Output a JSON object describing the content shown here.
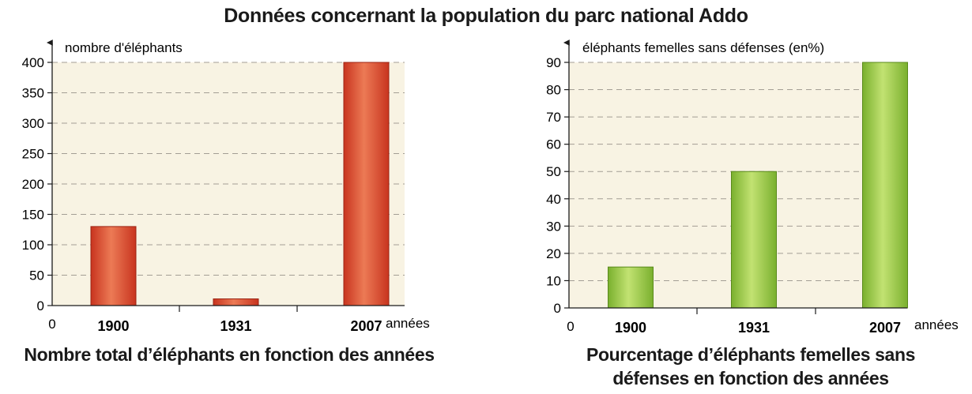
{
  "title": "Données concernant la population du parc national Addo",
  "chart_data": [
    {
      "type": "bar",
      "title": "Nombre total d’éléphants en fonction des années",
      "ylabel": "nombre d'éléphants",
      "xlabel": "années",
      "origin_label": "0",
      "categories": [
        "1900",
        "1931",
        "2007"
      ],
      "values": [
        130,
        11,
        400
      ],
      "ylim": [
        0,
        400
      ],
      "yticks": [
        0,
        50,
        100,
        150,
        200,
        250,
        300,
        350,
        400
      ],
      "grid": true,
      "bar_color": "#d9432a",
      "bar_highlight": "#ec7a55",
      "plot_bg": "#f8f3e3"
    },
    {
      "type": "bar",
      "title_lines": [
        "Pourcentage d’éléphants femelles sans",
        "défenses en fonction des années"
      ],
      "ylabel": "éléphants femelles sans défenses (en%)",
      "xlabel": "années",
      "origin_label": "0",
      "categories": [
        "1900",
        "1931",
        "2007"
      ],
      "values": [
        15,
        50,
        90
      ],
      "ylim": [
        0,
        90
      ],
      "yticks": [
        0,
        10,
        20,
        30,
        40,
        50,
        60,
        70,
        80,
        90
      ],
      "grid": true,
      "bar_color": "#7fb534",
      "bar_highlight": "#bfe06e",
      "plot_bg": "#f8f3e3"
    }
  ]
}
